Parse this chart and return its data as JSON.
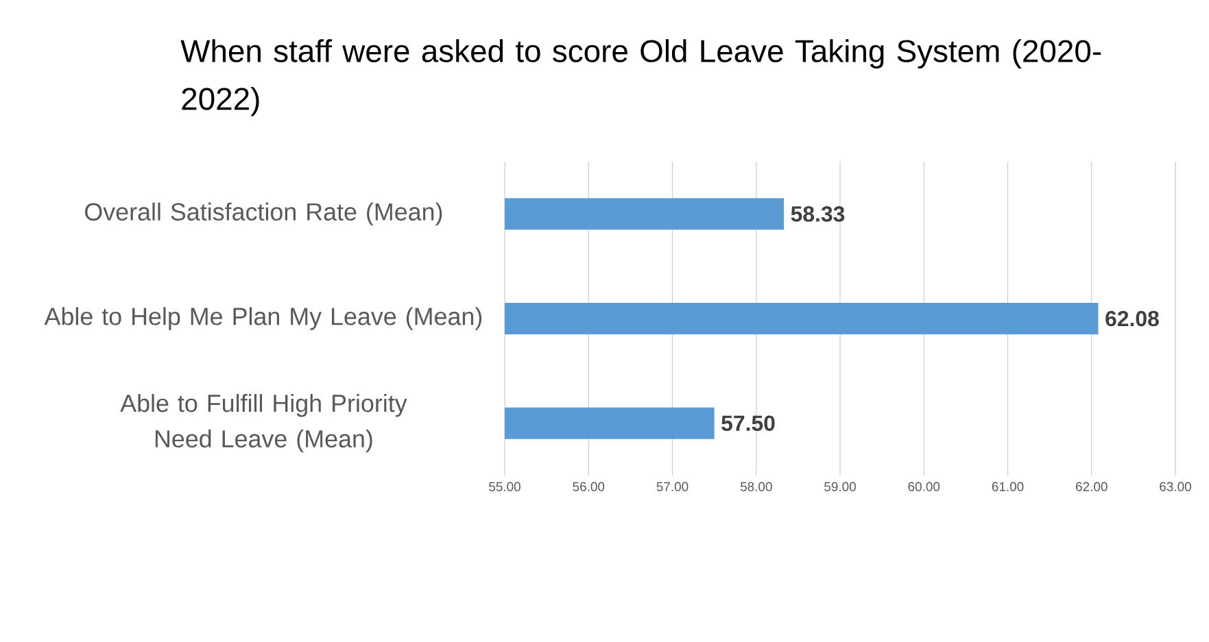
{
  "chart_data": {
    "type": "bar",
    "orientation": "horizontal",
    "title": "When staff were asked to score Old Leave Taking System (2020-2022)",
    "categories": [
      "Overall Satisfaction Rate (Mean)",
      "Able to Help Me Plan My Leave (Mean)",
      "Able to Fulfill High Priority Need Leave (Mean)"
    ],
    "values": [
      58.33,
      62.08,
      57.5
    ],
    "value_labels": [
      "58.33",
      "62.08",
      "57.50"
    ],
    "color": "#5b9bd5",
    "xlim": [
      55,
      63
    ],
    "xticks": [
      {
        "value": 55,
        "label": "55.00"
      },
      {
        "value": 56,
        "label": "56.00"
      },
      {
        "value": 57,
        "label": "57.00"
      },
      {
        "value": 58,
        "label": "58.00"
      },
      {
        "value": 59,
        "label": "59.00"
      },
      {
        "value": 60,
        "label": "60.00"
      },
      {
        "value": 61,
        "label": "61.00"
      },
      {
        "value": 62,
        "label": "62.00"
      },
      {
        "value": 63,
        "label": "63.00"
      }
    ],
    "grid": "x"
  }
}
